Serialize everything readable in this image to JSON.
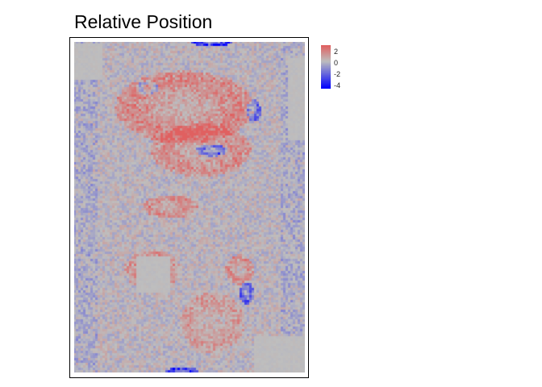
{
  "chart_data": {
    "type": "heatmap",
    "title": "Relative Position",
    "xlabel": "",
    "ylabel": "",
    "grid": false,
    "legend": {
      "placement": "right",
      "ticks": [
        "2",
        "0",
        "-2",
        "-4"
      ],
      "tick_values": [
        2,
        0,
        -2,
        -4
      ],
      "range": [
        -4.8,
        2.8
      ]
    },
    "color_scale": {
      "low": "#0000ff",
      "mid": "#bebebe",
      "high": "#e06060"
    },
    "grid_size": {
      "cols": 96,
      "rows": 137
    },
    "features": [
      {
        "kind": "ellipse",
        "cx": 0.48,
        "cy": 0.2,
        "rx": 0.3,
        "ry": 0.11,
        "v": 2.0
      },
      {
        "kind": "ellipse",
        "cx": 0.55,
        "cy": 0.33,
        "rx": 0.22,
        "ry": 0.08,
        "v": 1.7
      },
      {
        "kind": "ellipse",
        "cx": 0.42,
        "cy": 0.5,
        "rx": 0.12,
        "ry": 0.035,
        "v": 1.8
      },
      {
        "kind": "ellipse",
        "cx": 0.34,
        "cy": 0.69,
        "rx": 0.12,
        "ry": 0.06,
        "v": 1.4
      },
      {
        "kind": "ellipse",
        "cx": 0.72,
        "cy": 0.69,
        "rx": 0.06,
        "ry": 0.045,
        "v": 1.8
      },
      {
        "kind": "ellipse",
        "cx": 0.6,
        "cy": 0.85,
        "rx": 0.14,
        "ry": 0.09,
        "v": 1.3
      },
      {
        "kind": "ellipse",
        "cx": 0.32,
        "cy": 0.14,
        "rx": 0.05,
        "ry": 0.02,
        "v": -2.6
      },
      {
        "kind": "ellipse",
        "cx": 0.6,
        "cy": 0.33,
        "rx": 0.07,
        "ry": 0.018,
        "v": -3.2
      },
      {
        "kind": "ellipse",
        "cx": 0.78,
        "cy": 0.21,
        "rx": 0.03,
        "ry": 0.035,
        "v": -3.0
      },
      {
        "kind": "ellipse",
        "cx": 0.6,
        "cy": 0.003,
        "rx": 0.09,
        "ry": 0.012,
        "v": -4.8
      },
      {
        "kind": "ellipse",
        "cx": 0.47,
        "cy": 0.996,
        "rx": 0.07,
        "ry": 0.012,
        "v": -4.8
      },
      {
        "kind": "ellipse",
        "cx": 0.75,
        "cy": 0.76,
        "rx": 0.03,
        "ry": 0.035,
        "v": -3.0
      },
      {
        "kind": "flat",
        "x0": 0.27,
        "y0": 0.65,
        "x1": 0.42,
        "y1": 0.76,
        "v": 0.0
      },
      {
        "kind": "flat",
        "x0": 0.0,
        "y0": 0.01,
        "x1": 0.12,
        "y1": 0.12,
        "v": 0.0
      },
      {
        "kind": "flat",
        "x0": 0.78,
        "y0": 0.89,
        "x1": 1.0,
        "y1": 1.0,
        "v": 0.0
      },
      {
        "kind": "flat",
        "x0": 0.93,
        "y0": 0.05,
        "x1": 1.0,
        "y1": 0.3,
        "v": 0.0
      }
    ]
  }
}
